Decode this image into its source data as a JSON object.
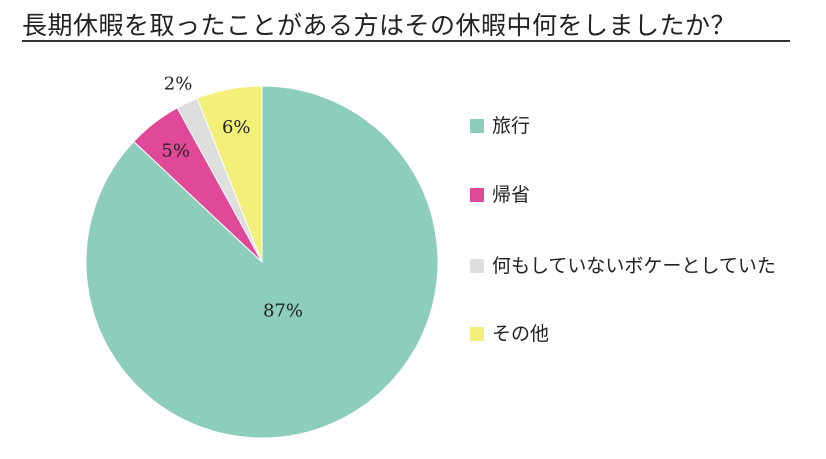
{
  "title": "長期休暇を取ったことがある方はその休暇中何をしましたか？",
  "chart_data": {
    "type": "pie",
    "title": "長期休暇を取ったことがある方はその休暇中何をしましたか？",
    "start": "12 o'clock",
    "direction": "clockwise",
    "legend_position": "right",
    "slices": [
      {
        "label": "旅行",
        "value": 87,
        "display": "87%",
        "color": "#8dcdbb"
      },
      {
        "label": "帰省",
        "value": 5,
        "display": "5%",
        "color": "#e04898"
      },
      {
        "label": "何もしていないボケーとしていた",
        "value": 2,
        "display": "2%",
        "color": "#dedede"
      },
      {
        "label": "その他",
        "value": 6,
        "display": "6%",
        "color": "#f3f07a"
      }
    ]
  }
}
